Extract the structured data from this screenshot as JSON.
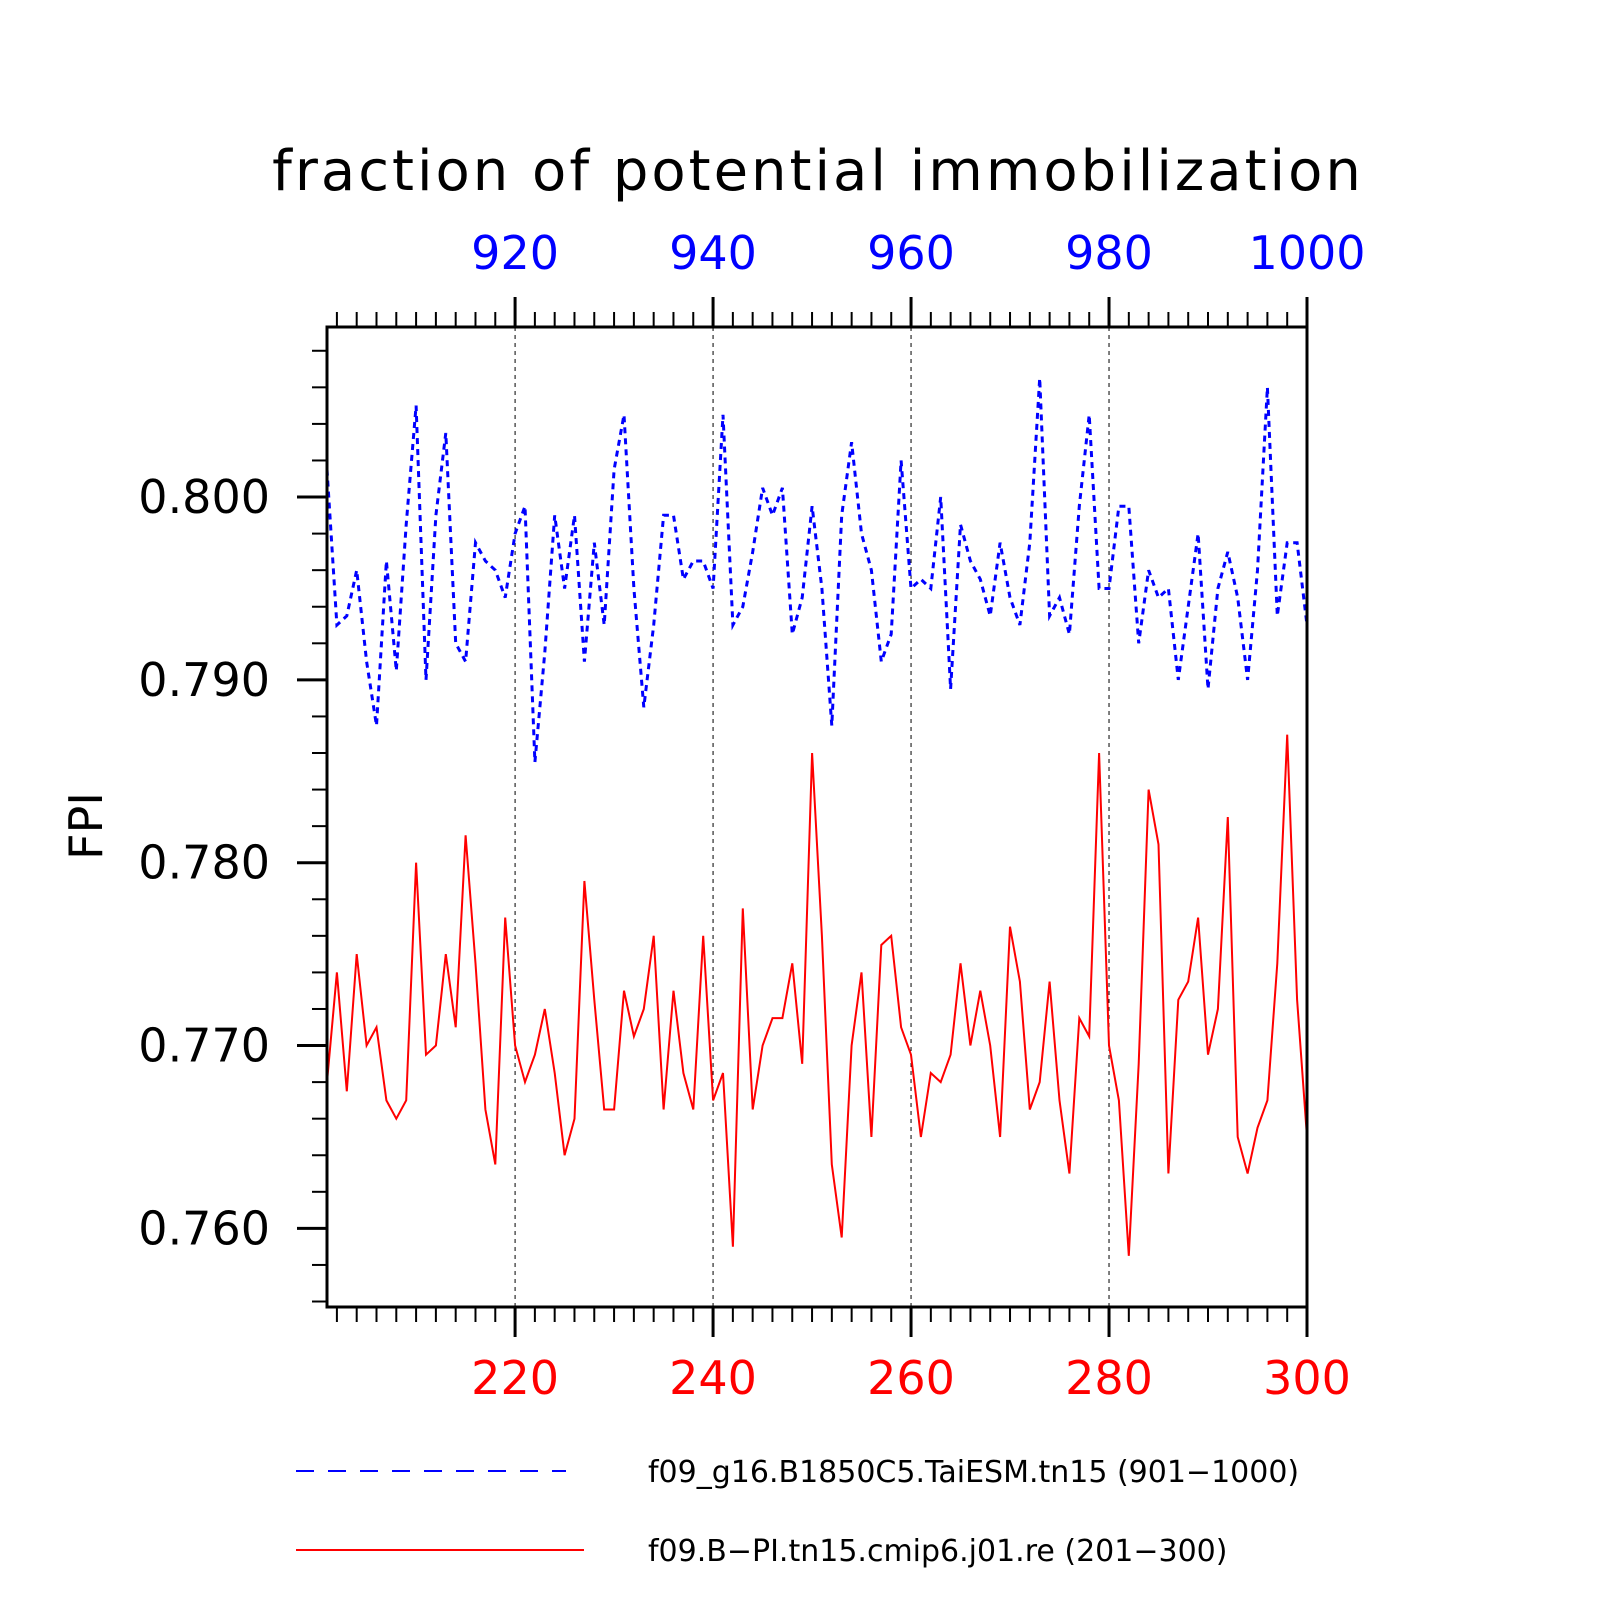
{
  "chart_data": {
    "type": "line",
    "title": "fraction of potential immobilization",
    "ylabel": "FPI",
    "ylim": [
      0.7557,
      0.8093
    ],
    "yticks": [
      0.76,
      0.77,
      0.78,
      0.79,
      0.8
    ],
    "ytick_labels": [
      "0.760",
      "0.770",
      "0.780",
      "0.790",
      "0.800"
    ],
    "top_axis": {
      "range": [
        901,
        1000
      ],
      "ticks": [
        920,
        940,
        960,
        980,
        1000
      ],
      "tick_labels": [
        "920",
        "940",
        "960",
        "980",
        "1000"
      ],
      "color": "#0000ff"
    },
    "bottom_axis": {
      "range": [
        201,
        300
      ],
      "ticks": [
        220,
        240,
        260,
        280,
        300
      ],
      "tick_labels": [
        "220",
        "240",
        "260",
        "280",
        "300"
      ],
      "color": "#ff0000"
    },
    "grid": "vertical dashed at major ticks",
    "legend_placement": "bottom",
    "series": [
      {
        "name": "f09_g16.B1850C5.TaiESM.tn15 (901−1000)",
        "axis": "top",
        "color": "#0000ff",
        "style": "dashed",
        "x": [
          901,
          902,
          903,
          904,
          905,
          906,
          907,
          908,
          909,
          910,
          911,
          912,
          913,
          914,
          915,
          916,
          917,
          918,
          919,
          920,
          921,
          922,
          923,
          924,
          925,
          926,
          927,
          928,
          929,
          930,
          931,
          932,
          933,
          934,
          935,
          936,
          937,
          938,
          939,
          940,
          941,
          942,
          943,
          944,
          945,
          946,
          947,
          948,
          949,
          950,
          951,
          952,
          953,
          954,
          955,
          956,
          957,
          958,
          959,
          960,
          961,
          962,
          963,
          964,
          965,
          966,
          967,
          968,
          969,
          970,
          971,
          972,
          973,
          974,
          975,
          976,
          977,
          978,
          979,
          980,
          981,
          982,
          983,
          984,
          985,
          986,
          987,
          988,
          989,
          990,
          991,
          992,
          993,
          994,
          995,
          996,
          997,
          998,
          999,
          1000
        ],
        "values": [
          0.8015,
          0.793,
          0.7935,
          0.796,
          0.791,
          0.7875,
          0.7965,
          0.7905,
          0.7985,
          0.805,
          0.79,
          0.799,
          0.8035,
          0.792,
          0.791,
          0.7975,
          0.7965,
          0.796,
          0.7945,
          0.798,
          0.7995,
          0.7855,
          0.7915,
          0.799,
          0.795,
          0.799,
          0.791,
          0.7975,
          0.793,
          0.8015,
          0.8045,
          0.795,
          0.7885,
          0.793,
          0.799,
          0.799,
          0.7955,
          0.7965,
          0.7965,
          0.795,
          0.8045,
          0.793,
          0.794,
          0.797,
          0.8005,
          0.799,
          0.8005,
          0.7925,
          0.7945,
          0.7995,
          0.795,
          0.7875,
          0.799,
          0.803,
          0.798,
          0.796,
          0.791,
          0.7925,
          0.802,
          0.795,
          0.7955,
          0.795,
          0.8,
          0.7895,
          0.7985,
          0.7965,
          0.7955,
          0.7935,
          0.7975,
          0.7945,
          0.793,
          0.7975,
          0.8065,
          0.7935,
          0.7945,
          0.7925,
          0.7995,
          0.8045,
          0.795,
          0.795,
          0.7995,
          0.7995,
          0.792,
          0.796,
          0.7945,
          0.795,
          0.79,
          0.794,
          0.798,
          0.7895,
          0.795,
          0.797,
          0.7945,
          0.79,
          0.796,
          0.806,
          0.7935,
          0.7975,
          0.7975,
          0.793
        ]
      },
      {
        "name": "f09.B−PI.tn15.cmip6.j01.re (201−300)",
        "axis": "bottom",
        "color": "#ff0000",
        "style": "solid",
        "x": [
          201,
          202,
          203,
          204,
          205,
          206,
          207,
          208,
          209,
          210,
          211,
          212,
          213,
          214,
          215,
          216,
          217,
          218,
          219,
          220,
          221,
          222,
          223,
          224,
          225,
          226,
          227,
          228,
          229,
          230,
          231,
          232,
          233,
          234,
          235,
          236,
          237,
          238,
          239,
          240,
          241,
          242,
          243,
          244,
          245,
          246,
          247,
          248,
          249,
          250,
          251,
          252,
          253,
          254,
          255,
          256,
          257,
          258,
          259,
          260,
          261,
          262,
          263,
          264,
          265,
          266,
          267,
          268,
          269,
          270,
          271,
          272,
          273,
          274,
          275,
          276,
          277,
          278,
          279,
          280,
          281,
          282,
          283,
          284,
          285,
          286,
          287,
          288,
          289,
          290,
          291,
          292,
          293,
          294,
          295,
          296,
          297,
          298,
          299,
          300
        ],
        "values": [
          0.768,
          0.774,
          0.7675,
          0.775,
          0.77,
          0.771,
          0.767,
          0.766,
          0.767,
          0.78,
          0.7695,
          0.77,
          0.775,
          0.771,
          0.7815,
          0.7745,
          0.7665,
          0.7635,
          0.777,
          0.77,
          0.768,
          0.7695,
          0.772,
          0.7685,
          0.764,
          0.766,
          0.779,
          0.7725,
          0.7665,
          0.7665,
          0.773,
          0.7705,
          0.772,
          0.776,
          0.7665,
          0.773,
          0.7685,
          0.7665,
          0.776,
          0.767,
          0.7685,
          0.759,
          0.7775,
          0.7665,
          0.77,
          0.7715,
          0.7715,
          0.7745,
          0.769,
          0.786,
          0.776,
          0.7635,
          0.7595,
          0.77,
          0.774,
          0.765,
          0.7755,
          0.776,
          0.771,
          0.7695,
          0.765,
          0.7685,
          0.768,
          0.7695,
          0.7745,
          0.77,
          0.773,
          0.77,
          0.765,
          0.7765,
          0.7735,
          0.7665,
          0.768,
          0.7735,
          0.767,
          0.763,
          0.7715,
          0.7705,
          0.786,
          0.77,
          0.767,
          0.7585,
          0.769,
          0.784,
          0.781,
          0.763,
          0.7725,
          0.7735,
          0.777,
          0.7695,
          0.772,
          0.7825,
          0.765,
          0.763,
          0.7655,
          0.767,
          0.7745,
          0.787,
          0.7725,
          0.765
        ]
      }
    ]
  }
}
